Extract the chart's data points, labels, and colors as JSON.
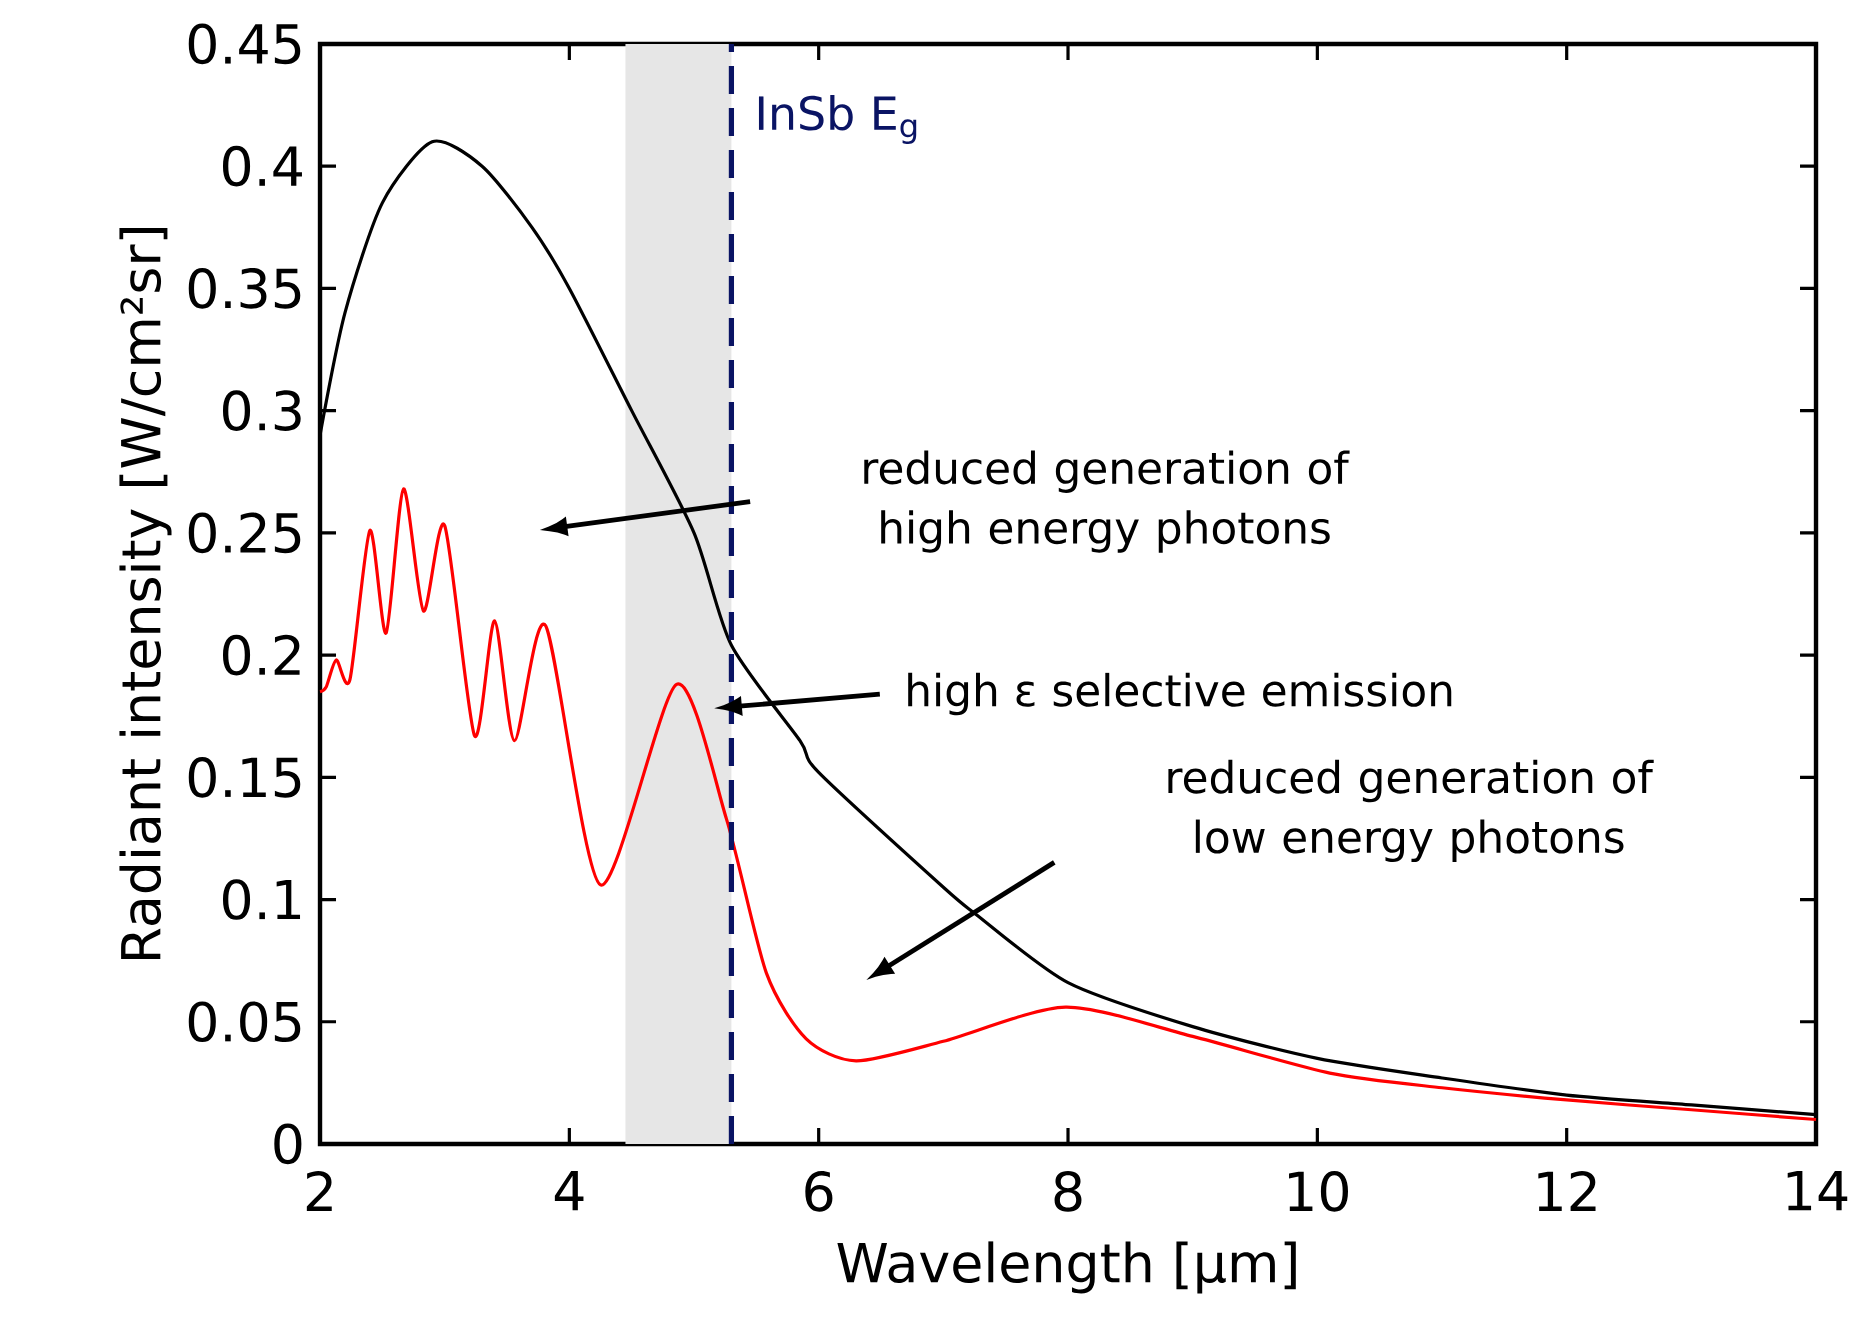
{
  "chart_data": {
    "type": "line",
    "xlabel": "Wavelength [µm]",
    "ylabel": "Radiant intensity [W/cm²sr]",
    "xlim": [
      2,
      14
    ],
    "ylim": [
      0,
      0.45
    ],
    "xticks": [
      2,
      4,
      6,
      8,
      10,
      12,
      14
    ],
    "yticks": [
      0,
      0.05,
      0.1,
      0.15,
      0.2,
      0.25,
      0.3,
      0.35,
      0.4,
      0.45
    ],
    "grid": false,
    "series": [
      {
        "color": "#000000",
        "x": [
          2,
          2.2,
          2.5,
          2.9,
          3.3,
          3.7,
          4,
          4.5,
          5,
          5.3,
          5.85,
          6,
          7,
          7.26,
          8,
          9,
          10,
          11,
          12,
          13,
          14
        ],
        "values": [
          0.29,
          0.34,
          0.385,
          0.41,
          0.4,
          0.375,
          0.35,
          0.3,
          0.25,
          0.204,
          0.165,
          0.152,
          0.105,
          0.094,
          0.066,
          0.048,
          0.035,
          0.027,
          0.02,
          0.016,
          0.012
        ]
      },
      {
        "color": "#ff0000",
        "x": [
          2,
          2.05,
          2.13,
          2.24,
          2.4,
          2.53,
          2.67,
          2.83,
          3.0,
          3.24,
          3.4,
          3.56,
          3.81,
          4.25,
          4.86,
          5.26,
          5.58,
          5.9,
          6.3,
          7.0,
          7.98,
          9,
          10.1,
          11,
          12,
          13,
          14
        ],
        "values": [
          0.185,
          0.187,
          0.198,
          0.19,
          0.251,
          0.209,
          0.268,
          0.218,
          0.253,
          0.167,
          0.214,
          0.165,
          0.212,
          0.106,
          0.188,
          0.133,
          0.07,
          0.043,
          0.034,
          0.042,
          0.056,
          0.044,
          0.029,
          0.023,
          0.018,
          0.014,
          0.01
        ]
      }
    ],
    "ref_lines": [
      {
        "axis": "x",
        "value": 5.3,
        "label": "InSb E$_{g}$",
        "color": "#0a1464",
        "line_style": "dashed"
      }
    ],
    "bands": [
      {
        "axis": "x",
        "from": 4.45,
        "to": 5.3,
        "color": "#e6e6e6"
      }
    ],
    "annotations": [
      "reduced generation of high energy photons",
      "high ε selective emission",
      "reduced generation of low energy photons"
    ]
  }
}
